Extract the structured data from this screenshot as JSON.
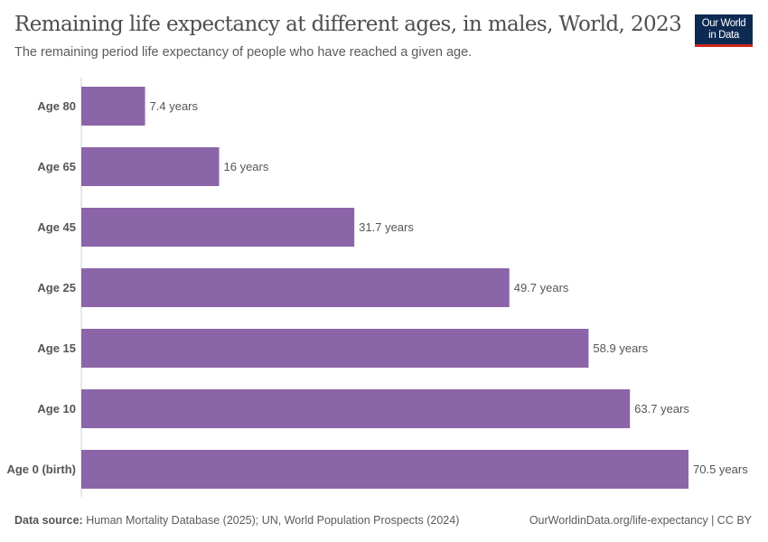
{
  "title": "Remaining life expectancy at different ages, in males, World, 2023",
  "subtitle": "The remaining period life expectancy of people who have reached a given age.",
  "logo": {
    "line1": "Our World",
    "line2": "in Data"
  },
  "footer": {
    "source_label": "Data source:",
    "source_text": " Human Mortality Database (2025); UN, World Population Prospects (2024)",
    "url": "OurWorldinData.org/life-expectancy | CC BY"
  },
  "colors": {
    "bar": "#8c65a9",
    "text": "#555555"
  },
  "chart_data": {
    "type": "bar",
    "orientation": "horizontal",
    "categories": [
      "Age 80",
      "Age 65",
      "Age 45",
      "Age 25",
      "Age 15",
      "Age 10",
      "Age 0 (birth)"
    ],
    "values": [
      7.4,
      16,
      31.7,
      49.7,
      58.9,
      63.7,
      70.5
    ],
    "data_labels": [
      "7.4 years",
      "16 years",
      "31.7 years",
      "49.7 years",
      "58.9 years",
      "63.7 years",
      "70.5 years"
    ],
    "unit": "years",
    "xlim": [
      0,
      70.5
    ],
    "grid": false
  }
}
